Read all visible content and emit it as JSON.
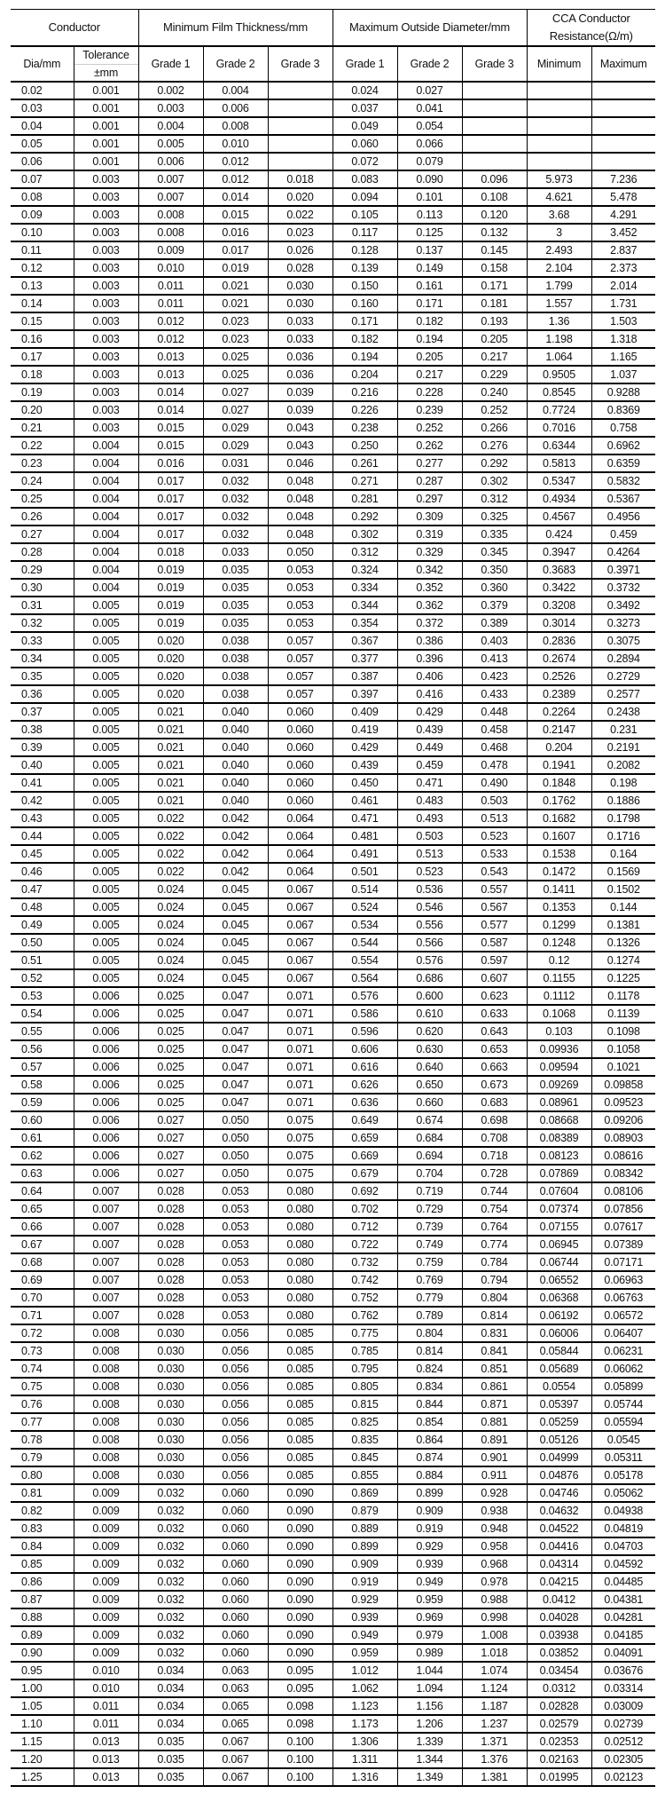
{
  "header": {
    "conductor": "Conductor",
    "min_film": "Minimum Film Thickness/mm",
    "max_od": "Maximum Outside Diameter/mm",
    "resistance": "CCA Conductor Resistance(Ω/m)",
    "dia": "Dia/mm",
    "tolerance": "Tolerance",
    "tolerance_unit": "±mm",
    "grade1": "Grade 1",
    "grade2": "Grade 2",
    "grade3": "Grade 3",
    "minimum": "Minimum",
    "maximum": "Maximum"
  },
  "accent_color": "#f5c623",
  "rows": [
    [
      "0.02",
      "0.001",
      "0.002",
      "0.004",
      "",
      "0.024",
      "0.027",
      "",
      "",
      ""
    ],
    [
      "0.03",
      "0.001",
      "0.003",
      "0.006",
      "",
      "0.037",
      "0.041",
      "",
      "",
      ""
    ],
    [
      "0.04",
      "0.001",
      "0.004",
      "0.008",
      "",
      "0.049",
      "0.054",
      "",
      "",
      ""
    ],
    [
      "0.05",
      "0.001",
      "0.005",
      "0.010",
      "",
      "0.060",
      "0.066",
      "",
      "",
      ""
    ],
    [
      "0.06",
      "0.001",
      "0.006",
      "0.012",
      "",
      "0.072",
      "0.079",
      "",
      "",
      ""
    ],
    [
      "0.07",
      "0.003",
      "0.007",
      "0.012",
      "0.018",
      "0.083",
      "0.090",
      "0.096",
      "5.973",
      "7.236"
    ],
    [
      "0.08",
      "0.003",
      "0.007",
      "0.014",
      "0.020",
      "0.094",
      "0.101",
      "0.108",
      "4.621",
      "5.478"
    ],
    [
      "0.09",
      "0.003",
      "0.008",
      "0.015",
      "0.022",
      "0.105",
      "0.113",
      "0.120",
      "3.68",
      "4.291"
    ],
    [
      "0.10",
      "0.003",
      "0.008",
      "0.016",
      "0.023",
      "0.117",
      "0.125",
      "0.132",
      "3",
      "3.452"
    ],
    [
      "0.11",
      "0.003",
      "0.009",
      "0.017",
      "0.026",
      "0.128",
      "0.137",
      "0.145",
      "2.493",
      "2.837"
    ],
    [
      "0.12",
      "0.003",
      "0.010",
      "0.019",
      "0.028",
      "0.139",
      "0.149",
      "0.158",
      "2.104",
      "2.373"
    ],
    [
      "0.13",
      "0.003",
      "0.011",
      "0.021",
      "0.030",
      "0.150",
      "0.161",
      "0.171",
      "1.799",
      "2.014"
    ],
    [
      "0.14",
      "0.003",
      "0.011",
      "0.021",
      "0.030",
      "0.160",
      "0.171",
      "0.181",
      "1.557",
      "1.731"
    ],
    [
      "0.15",
      "0.003",
      "0.012",
      "0.023",
      "0.033",
      "0.171",
      "0.182",
      "0.193",
      "1.36",
      "1.503"
    ],
    [
      "0.16",
      "0.003",
      "0.012",
      "0.023",
      "0.033",
      "0.182",
      "0.194",
      "0.205",
      "1.198",
      "1.318"
    ],
    [
      "0.17",
      "0.003",
      "0.013",
      "0.025",
      "0.036",
      "0.194",
      "0.205",
      "0.217",
      "1.064",
      "1.165"
    ],
    [
      "0.18",
      "0.003",
      "0.013",
      "0.025",
      "0.036",
      "0.204",
      "0.217",
      "0.229",
      "0.9505",
      "1.037"
    ],
    [
      "0.19",
      "0.003",
      "0.014",
      "0.027",
      "0.039",
      "0.216",
      "0.228",
      "0.240",
      "0.8545",
      "0.9288"
    ],
    [
      "0.20",
      "0.003",
      "0.014",
      "0.027",
      "0.039",
      "0.226",
      "0.239",
      "0.252",
      "0.7724",
      "0.8369"
    ],
    [
      "0.21",
      "0.003",
      "0.015",
      "0.029",
      "0.043",
      "0.238",
      "0.252",
      "0.266",
      "0.7016",
      "0.758"
    ],
    [
      "0.22",
      "0.004",
      "0.015",
      "0.029",
      "0.043",
      "0.250",
      "0.262",
      "0.276",
      "0.6344",
      "0.6962"
    ],
    [
      "0.23",
      "0.004",
      "0.016",
      "0.031",
      "0.046",
      "0.261",
      "0.277",
      "0.292",
      "0.5813",
      "0.6359"
    ],
    [
      "0.24",
      "0.004",
      "0.017",
      "0.032",
      "0.048",
      "0.271",
      "0.287",
      "0.302",
      "0.5347",
      "0.5832"
    ],
    [
      "0.25",
      "0.004",
      "0.017",
      "0.032",
      "0.048",
      "0.281",
      "0.297",
      "0.312",
      "0.4934",
      "0.5367"
    ],
    [
      "0.26",
      "0.004",
      "0.017",
      "0.032",
      "0.048",
      "0.292",
      "0.309",
      "0.325",
      "0.4567",
      "0.4956"
    ],
    [
      "0.27",
      "0.004",
      "0.017",
      "0.032",
      "0.048",
      "0.302",
      "0.319",
      "0.335",
      "0.424",
      "0.459"
    ],
    [
      "0.28",
      "0.004",
      "0.018",
      "0.033",
      "0.050",
      "0.312",
      "0.329",
      "0.345",
      "0.3947",
      "0.4264"
    ],
    [
      "0.29",
      "0.004",
      "0.019",
      "0.035",
      "0.053",
      "0.324",
      "0.342",
      "0.350",
      "0.3683",
      "0.3971"
    ],
    [
      "0.30",
      "0.004",
      "0.019",
      "0.035",
      "0.053",
      "0.334",
      "0.352",
      "0.360",
      "0.3422",
      "0.3732"
    ],
    [
      "0.31",
      "0.005",
      "0.019",
      "0.035",
      "0.053",
      "0.344",
      "0.362",
      "0.379",
      "0.3208",
      "0.3492"
    ],
    [
      "0.32",
      "0.005",
      "0.019",
      "0.035",
      "0.053",
      "0.354",
      "0.372",
      "0.389",
      "0.3014",
      "0.3273"
    ],
    [
      "0.33",
      "0.005",
      "0.020",
      "0.038",
      "0.057",
      "0.367",
      "0.386",
      "0.403",
      "0.2836",
      "0.3075"
    ],
    [
      "0.34",
      "0.005",
      "0.020",
      "0.038",
      "0.057",
      "0.377",
      "0.396",
      "0.413",
      "0.2674",
      "0.2894"
    ],
    [
      "0.35",
      "0.005",
      "0.020",
      "0.038",
      "0.057",
      "0.387",
      "0.406",
      "0.423",
      "0.2526",
      "0.2729"
    ],
    [
      "0.36",
      "0.005",
      "0.020",
      "0.038",
      "0.057",
      "0.397",
      "0.416",
      "0.433",
      "0.2389",
      "0.2577"
    ],
    [
      "0.37",
      "0.005",
      "0.021",
      "0.040",
      "0.060",
      "0.409",
      "0.429",
      "0.448",
      "0.2264",
      "0.2438"
    ],
    [
      "0.38",
      "0.005",
      "0.021",
      "0.040",
      "0.060",
      "0.419",
      "0.439",
      "0.458",
      "0.2147",
      "0.231"
    ],
    [
      "0.39",
      "0.005",
      "0.021",
      "0.040",
      "0.060",
      "0.429",
      "0.449",
      "0.468",
      "0.204",
      "0.2191"
    ],
    [
      "0.40",
      "0.005",
      "0.021",
      "0.040",
      "0.060",
      "0.439",
      "0.459",
      "0.478",
      "0.1941",
      "0.2082"
    ],
    [
      "0.41",
      "0.005",
      "0.021",
      "0.040",
      "0.060",
      "0.450",
      "0.471",
      "0.490",
      "0.1848",
      "0.198"
    ],
    [
      "0.42",
      "0.005",
      "0.021",
      "0.040",
      "0.060",
      "0.461",
      "0.483",
      "0.503",
      "0.1762",
      "0.1886"
    ],
    [
      "0.43",
      "0.005",
      "0.022",
      "0.042",
      "0.064",
      "0.471",
      "0.493",
      "0.513",
      "0.1682",
      "0.1798"
    ],
    [
      "0.44",
      "0.005",
      "0.022",
      "0.042",
      "0.064",
      "0.481",
      "0.503",
      "0.523",
      "0.1607",
      "0.1716"
    ],
    [
      "0.45",
      "0.005",
      "0.022",
      "0.042",
      "0.064",
      "0.491",
      "0.513",
      "0.533",
      "0.1538",
      "0.164"
    ],
    [
      "0.46",
      "0.005",
      "0.022",
      "0.042",
      "0.064",
      "0.501",
      "0.523",
      "0.543",
      "0.1472",
      "0.1569"
    ],
    [
      "0.47",
      "0.005",
      "0.024",
      "0.045",
      "0.067",
      "0.514",
      "0.536",
      "0.557",
      "0.1411",
      "0.1502"
    ],
    [
      "0.48",
      "0.005",
      "0.024",
      "0.045",
      "0.067",
      "0.524",
      "0.546",
      "0.567",
      "0.1353",
      "0.144"
    ],
    [
      "0.49",
      "0.005",
      "0.024",
      "0.045",
      "0.067",
      "0.534",
      "0.556",
      "0.577",
      "0.1299",
      "0.1381"
    ],
    [
      "0.50",
      "0.005",
      "0.024",
      "0.045",
      "0.067",
      "0.544",
      "0.566",
      "0.587",
      "0.1248",
      "0.1326"
    ],
    [
      "0.51",
      "0.005",
      "0.024",
      "0.045",
      "0.067",
      "0.554",
      "0.576",
      "0.597",
      "0.12",
      "0.1274"
    ],
    [
      "0.52",
      "0.005",
      "0.024",
      "0.045",
      "0.067",
      "0.564",
      "0.686",
      "0.607",
      "0.1155",
      "0.1225"
    ],
    [
      "0.53",
      "0.006",
      "0.025",
      "0.047",
      "0.071",
      "0.576",
      "0.600",
      "0.623",
      "0.1112",
      "0.1178"
    ],
    [
      "0.54",
      "0.006",
      "0.025",
      "0.047",
      "0.071",
      "0.586",
      "0.610",
      "0.633",
      "0.1068",
      "0.1139"
    ],
    [
      "0.55",
      "0.006",
      "0.025",
      "0.047",
      "0.071",
      "0.596",
      "0.620",
      "0.643",
      "0.103",
      "0.1098"
    ],
    [
      "0.56",
      "0.006",
      "0.025",
      "0.047",
      "0.071",
      "0.606",
      "0.630",
      "0.653",
      "0.09936",
      "0.1058"
    ],
    [
      "0.57",
      "0.006",
      "0.025",
      "0.047",
      "0.071",
      "0.616",
      "0.640",
      "0.663",
      "0.09594",
      "0.1021"
    ],
    [
      "0.58",
      "0.006",
      "0.025",
      "0.047",
      "0.071",
      "0.626",
      "0.650",
      "0.673",
      "0.09269",
      "0.09858"
    ],
    [
      "0.59",
      "0.006",
      "0.025",
      "0.047",
      "0.071",
      "0.636",
      "0.660",
      "0.683",
      "0.08961",
      "0.09523"
    ],
    [
      "0.60",
      "0.006",
      "0.027",
      "0.050",
      "0.075",
      "0.649",
      "0.674",
      "0.698",
      "0.08668",
      "0.09206"
    ],
    [
      "0.61",
      "0.006",
      "0.027",
      "0.050",
      "0.075",
      "0.659",
      "0.684",
      "0.708",
      "0.08389",
      "0.08903"
    ],
    [
      "0.62",
      "0.006",
      "0.027",
      "0.050",
      "0.075",
      "0.669",
      "0.694",
      "0.718",
      "0.08123",
      "0.08616"
    ],
    [
      "0.63",
      "0.006",
      "0.027",
      "0.050",
      "0.075",
      "0.679",
      "0.704",
      "0.728",
      "0.07869",
      "0.08342"
    ],
    [
      "0.64",
      "0.007",
      "0.028",
      "0.053",
      "0.080",
      "0.692",
      "0.719",
      "0.744",
      "0.07604",
      "0.08106"
    ],
    [
      "0.65",
      "0.007",
      "0.028",
      "0.053",
      "0.080",
      "0.702",
      "0.729",
      "0.754",
      "0.07374",
      "0.07856"
    ],
    [
      "0.66",
      "0.007",
      "0.028",
      "0.053",
      "0.080",
      "0.712",
      "0.739",
      "0.764",
      "0.07155",
      "0.07617"
    ],
    [
      "0.67",
      "0.007",
      "0.028",
      "0.053",
      "0.080",
      "0.722",
      "0.749",
      "0.774",
      "0.06945",
      "0.07389"
    ],
    [
      "0.68",
      "0.007",
      "0.028",
      "0.053",
      "0.080",
      "0.732",
      "0.759",
      "0.784",
      "0.06744",
      "0.07171"
    ],
    [
      "0.69",
      "0.007",
      "0.028",
      "0.053",
      "0.080",
      "0.742",
      "0.769",
      "0.794",
      "0.06552",
      "0.06963"
    ],
    [
      "0.70",
      "0.007",
      "0.028",
      "0.053",
      "0.080",
      "0.752",
      "0.779",
      "0.804",
      "0.06368",
      "0.06763"
    ],
    [
      "0.71",
      "0.007",
      "0.028",
      "0.053",
      "0.080",
      "0.762",
      "0.789",
      "0.814",
      "0.06192",
      "0.06572"
    ],
    [
      "0.72",
      "0.008",
      "0.030",
      "0.056",
      "0.085",
      "0.775",
      "0.804",
      "0.831",
      "0.06006",
      "0.06407"
    ],
    [
      "0.73",
      "0.008",
      "0.030",
      "0.056",
      "0.085",
      "0.785",
      "0.814",
      "0.841",
      "0.05844",
      "0.06231"
    ],
    [
      "0.74",
      "0.008",
      "0.030",
      "0.056",
      "0.085",
      "0.795",
      "0.824",
      "0.851",
      "0.05689",
      "0.06062"
    ],
    [
      "0.75",
      "0.008",
      "0.030",
      "0.056",
      "0.085",
      "0.805",
      "0.834",
      "0.861",
      "0.0554",
      "0.05899"
    ],
    [
      "0.76",
      "0.008",
      "0.030",
      "0.056",
      "0.085",
      "0.815",
      "0.844",
      "0.871",
      "0.05397",
      "0.05744"
    ],
    [
      "0.77",
      "0.008",
      "0.030",
      "0.056",
      "0.085",
      "0.825",
      "0.854",
      "0.881",
      "0.05259",
      "0.05594"
    ],
    [
      "0.78",
      "0.008",
      "0.030",
      "0.056",
      "0.085",
      "0.835",
      "0.864",
      "0.891",
      "0.05126",
      "0.0545"
    ],
    [
      "0.79",
      "0.008",
      "0.030",
      "0.056",
      "0.085",
      "0.845",
      "0.874",
      "0.901",
      "0.04999",
      "0.05311"
    ],
    [
      "0.80",
      "0.008",
      "0.030",
      "0.056",
      "0.085",
      "0.855",
      "0.884",
      "0.911",
      "0.04876",
      "0.05178"
    ],
    [
      "0.81",
      "0.009",
      "0.032",
      "0.060",
      "0.090",
      "0.869",
      "0.899",
      "0.928",
      "0.04746",
      "0.05062"
    ],
    [
      "0.82",
      "0.009",
      "0.032",
      "0.060",
      "0.090",
      "0.879",
      "0.909",
      "0.938",
      "0.04632",
      "0.04938"
    ],
    [
      "0.83",
      "0.009",
      "0.032",
      "0.060",
      "0.090",
      "0.889",
      "0.919",
      "0.948",
      "0.04522",
      "0.04819"
    ],
    [
      "0.84",
      "0.009",
      "0.032",
      "0.060",
      "0.090",
      "0.899",
      "0.929",
      "0.958",
      "0.04416",
      "0.04703"
    ],
    [
      "0.85",
      "0.009",
      "0.032",
      "0.060",
      "0.090",
      "0.909",
      "0.939",
      "0.968",
      "0.04314",
      "0.04592"
    ],
    [
      "0.86",
      "0.009",
      "0.032",
      "0.060",
      "0.090",
      "0.919",
      "0.949",
      "0.978",
      "0.04215",
      "0.04485"
    ],
    [
      "0.87",
      "0.009",
      "0.032",
      "0.060",
      "0.090",
      "0.929",
      "0.959",
      "0.988",
      "0.0412",
      "0.04381"
    ],
    [
      "0.88",
      "0.009",
      "0.032",
      "0.060",
      "0.090",
      "0.939",
      "0.969",
      "0.998",
      "0.04028",
      "0.04281"
    ],
    [
      "0.89",
      "0.009",
      "0.032",
      "0.060",
      "0.090",
      "0.949",
      "0.979",
      "1.008",
      "0.03938",
      "0.04185"
    ],
    [
      "0.90",
      "0.009",
      "0.032",
      "0.060",
      "0.090",
      "0.959",
      "0.989",
      "1.018",
      "0.03852",
      "0.04091"
    ],
    [
      "0.95",
      "0.010",
      "0.034",
      "0.063",
      "0.095",
      "1.012",
      "1.044",
      "1.074",
      "0.03454",
      "0.03676"
    ],
    [
      "1.00",
      "0.010",
      "0.034",
      "0.063",
      "0.095",
      "1.062",
      "1.094",
      "1.124",
      "0.0312",
      "0.03314"
    ],
    [
      "1.05",
      "0.011",
      "0.034",
      "0.065",
      "0.098",
      "1.123",
      "1.156",
      "1.187",
      "0.02828",
      "0.03009"
    ],
    [
      "1.10",
      "0.011",
      "0.034",
      "0.065",
      "0.098",
      "1.173",
      "1.206",
      "1.237",
      "0.02579",
      "0.02739"
    ],
    [
      "1.15",
      "0.013",
      "0.035",
      "0.067",
      "0.100",
      "1.306",
      "1.339",
      "1.371",
      "0.02353",
      "0.02512"
    ],
    [
      "1.20",
      "0.013",
      "0.035",
      "0.067",
      "0.100",
      "1.311",
      "1.344",
      "1.376",
      "0.02163",
      "0.02305"
    ],
    [
      "1.25",
      "0.013",
      "0.035",
      "0.067",
      "0.100",
      "1.316",
      "1.349",
      "1.381",
      "0.01995",
      "0.02123"
    ]
  ]
}
